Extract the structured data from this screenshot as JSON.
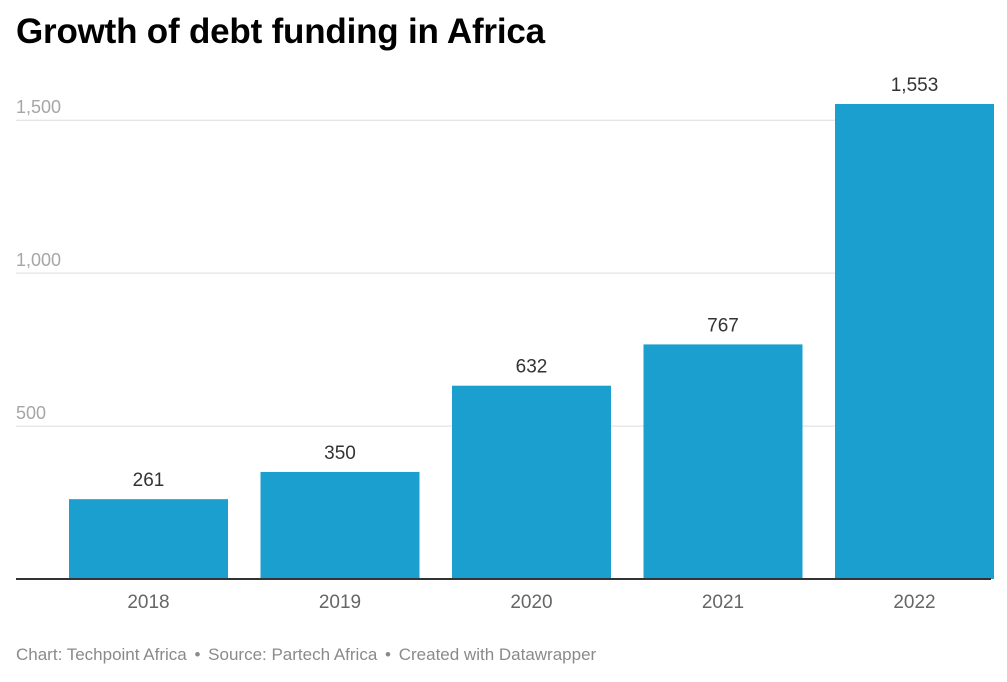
{
  "title": "Growth of debt funding in Africa",
  "footer": {
    "chart_credit": "Chart: Techpoint Africa",
    "source": "Source: Partech Africa",
    "created_with": "Created with Datawrapper",
    "separator": "•"
  },
  "colors": {
    "bar": "#1a9fcf",
    "grid": "#dddddd",
    "axis": "#333333",
    "tick_label": "#a6a6a6",
    "category_label": "#666666",
    "value_label": "#333333"
  },
  "chart_data": {
    "type": "bar",
    "categories": [
      "2018",
      "2019",
      "2020",
      "2021",
      "2022"
    ],
    "values": [
      261,
      350,
      632,
      767,
      1553
    ],
    "value_labels": [
      "261",
      "350",
      "632",
      "767",
      "1,553"
    ],
    "yticks": [
      500,
      1000,
      1500
    ],
    "ytick_labels": [
      "500",
      "1,000",
      "1,500"
    ],
    "ylim": [
      0,
      1553
    ],
    "grid": true,
    "title": "Growth of debt funding in Africa",
    "xlabel": "",
    "ylabel": ""
  }
}
